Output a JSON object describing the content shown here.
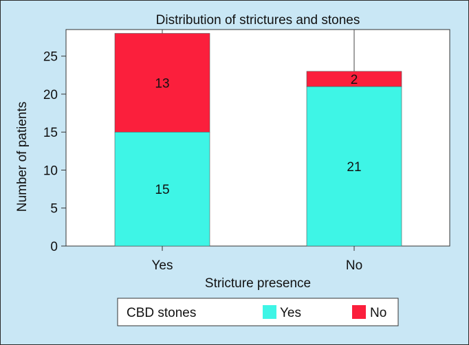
{
  "chart_data": {
    "type": "bar",
    "stacked": true,
    "title": "Distribution of strictures and stones",
    "xlabel": "Stricture presence",
    "ylabel": "Number of patients",
    "categories": [
      "Yes",
      "No"
    ],
    "series": [
      {
        "name": "Yes",
        "values": [
          15,
          21
        ],
        "color": "#3ef5e6"
      },
      {
        "name": "No",
        "values": [
          13,
          2
        ],
        "color": "#fb1f3c"
      }
    ],
    "ylim": [
      0,
      28.5
    ],
    "yticks": [
      0,
      5,
      10,
      15,
      20,
      25
    ],
    "grid": true,
    "legend": {
      "title": "CBD stones",
      "placement": "bottom"
    }
  }
}
